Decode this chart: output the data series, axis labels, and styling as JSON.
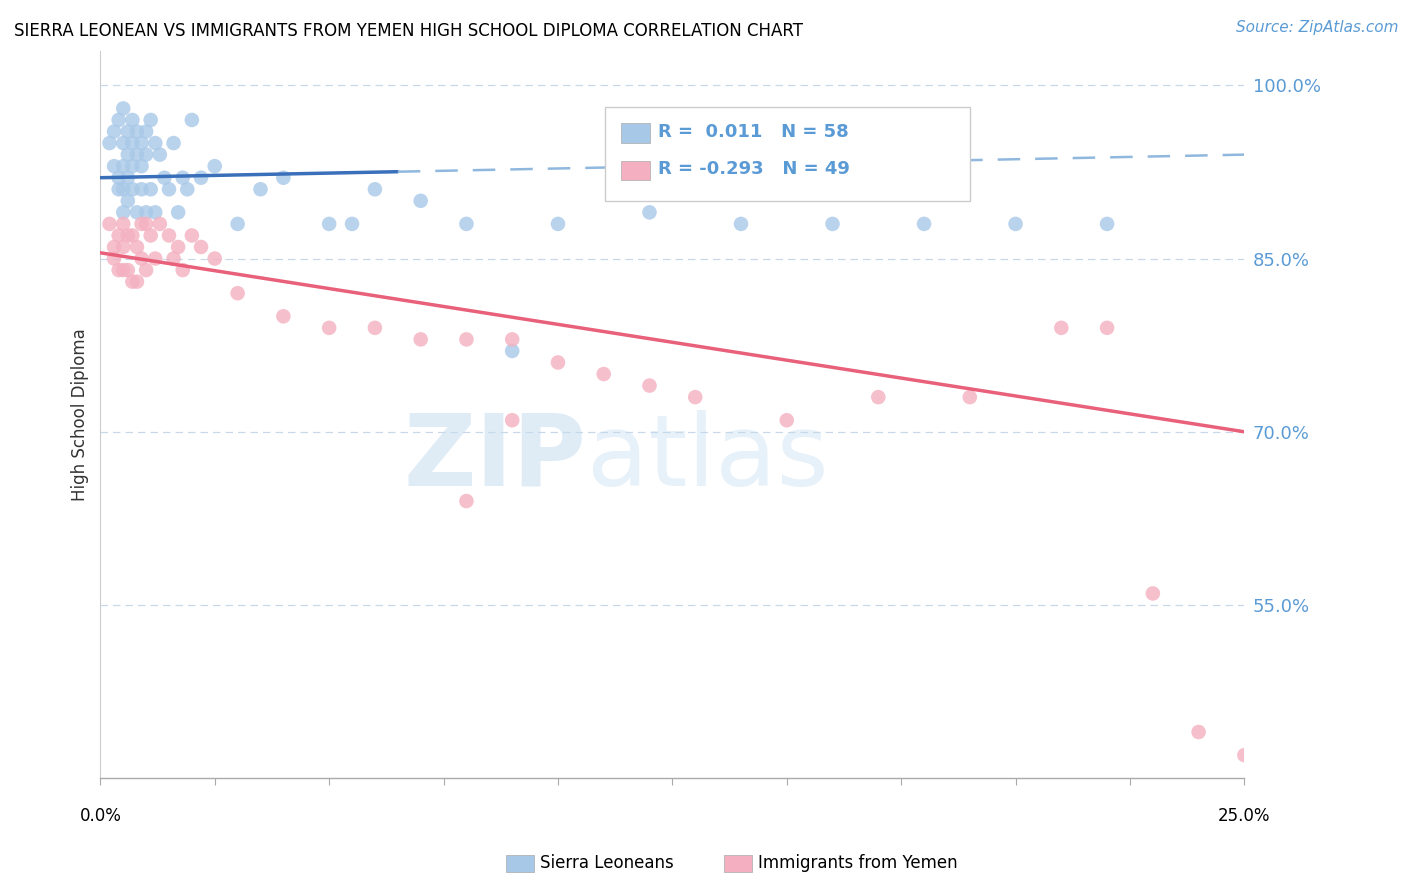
{
  "title": "SIERRA LEONEAN VS IMMIGRANTS FROM YEMEN HIGH SCHOOL DIPLOMA CORRELATION CHART",
  "source": "Source: ZipAtlas.com",
  "ylabel": "High School Diploma",
  "xlim": [
    0.0,
    0.25
  ],
  "ylim": [
    0.4,
    1.03
  ],
  "yticks": [
    0.55,
    0.7,
    0.85,
    1.0
  ],
  "ytick_labels": [
    "55.0%",
    "70.0%",
    "85.0%",
    "100.0%"
  ],
  "legend_labels": [
    "Sierra Leoneans",
    "Immigrants from Yemen"
  ],
  "blue_R": "0.011",
  "blue_N": "58",
  "pink_R": "-0.293",
  "pink_N": "49",
  "blue_color": "#a8c8e8",
  "pink_color": "#f4b0c0",
  "trend_blue_solid_color": "#3a6fba",
  "trend_blue_dash_color": "#90b8de",
  "trend_pink_color": "#e8607a",
  "blue_scatter_x": [
    0.002,
    0.003,
    0.003,
    0.004,
    0.004,
    0.004,
    0.005,
    0.005,
    0.005,
    0.005,
    0.005,
    0.006,
    0.006,
    0.006,
    0.006,
    0.007,
    0.007,
    0.007,
    0.007,
    0.008,
    0.008,
    0.008,
    0.009,
    0.009,
    0.009,
    0.01,
    0.01,
    0.01,
    0.011,
    0.011,
    0.012,
    0.012,
    0.013,
    0.014,
    0.015,
    0.016,
    0.017,
    0.018,
    0.019,
    0.02,
    0.022,
    0.025,
    0.03,
    0.035,
    0.04,
    0.05,
    0.055,
    0.06,
    0.07,
    0.08,
    0.09,
    0.1,
    0.12,
    0.14,
    0.16,
    0.18,
    0.2,
    0.22
  ],
  "blue_scatter_y": [
    0.95,
    0.96,
    0.93,
    0.97,
    0.92,
    0.91,
    0.98,
    0.95,
    0.93,
    0.91,
    0.89,
    0.96,
    0.94,
    0.92,
    0.9,
    0.97,
    0.95,
    0.93,
    0.91,
    0.96,
    0.94,
    0.89,
    0.95,
    0.93,
    0.91,
    0.96,
    0.94,
    0.89,
    0.97,
    0.91,
    0.95,
    0.89,
    0.94,
    0.92,
    0.91,
    0.95,
    0.89,
    0.92,
    0.91,
    0.97,
    0.92,
    0.93,
    0.88,
    0.91,
    0.92,
    0.88,
    0.88,
    0.91,
    0.9,
    0.88,
    0.77,
    0.88,
    0.89,
    0.88,
    0.88,
    0.88,
    0.88,
    0.88
  ],
  "pink_scatter_x": [
    0.002,
    0.003,
    0.003,
    0.004,
    0.004,
    0.005,
    0.005,
    0.005,
    0.006,
    0.006,
    0.007,
    0.007,
    0.008,
    0.008,
    0.009,
    0.009,
    0.01,
    0.01,
    0.011,
    0.012,
    0.013,
    0.015,
    0.016,
    0.017,
    0.018,
    0.02,
    0.022,
    0.025,
    0.03,
    0.04,
    0.05,
    0.06,
    0.07,
    0.08,
    0.09,
    0.1,
    0.11,
    0.12,
    0.13,
    0.15,
    0.17,
    0.19,
    0.21,
    0.22,
    0.23,
    0.24,
    0.25,
    0.08,
    0.09
  ],
  "pink_scatter_y": [
    0.88,
    0.86,
    0.85,
    0.87,
    0.84,
    0.88,
    0.86,
    0.84,
    0.87,
    0.84,
    0.87,
    0.83,
    0.86,
    0.83,
    0.88,
    0.85,
    0.88,
    0.84,
    0.87,
    0.85,
    0.88,
    0.87,
    0.85,
    0.86,
    0.84,
    0.87,
    0.86,
    0.85,
    0.82,
    0.8,
    0.79,
    0.79,
    0.78,
    0.78,
    0.78,
    0.76,
    0.75,
    0.74,
    0.73,
    0.71,
    0.73,
    0.73,
    0.79,
    0.79,
    0.56,
    0.44,
    0.42,
    0.64,
    0.71
  ],
  "blue_trend_x": [
    0.0,
    0.25
  ],
  "blue_trend_y": [
    0.92,
    0.94
  ],
  "blue_trend_split": 0.065,
  "pink_trend_x": [
    0.0,
    0.25
  ],
  "pink_trend_y": [
    0.855,
    0.7
  ]
}
